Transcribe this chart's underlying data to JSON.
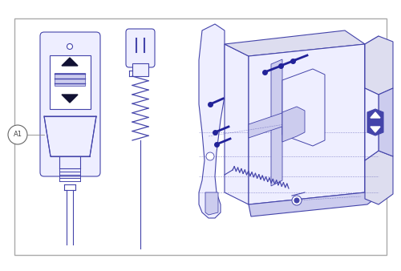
{
  "bg_color": "#ffffff",
  "line_color": "#4444aa",
  "line_color_dark": "#222266",
  "screw_color": "#222299",
  "border_color": "#999999",
  "face_color_light": "#eeeeff",
  "face_color_mid": "#ddddef",
  "face_color_dark": "#ccccee",
  "fig_width": 5.0,
  "fig_height": 3.38,
  "dpi": 100,
  "label_text": "A1"
}
